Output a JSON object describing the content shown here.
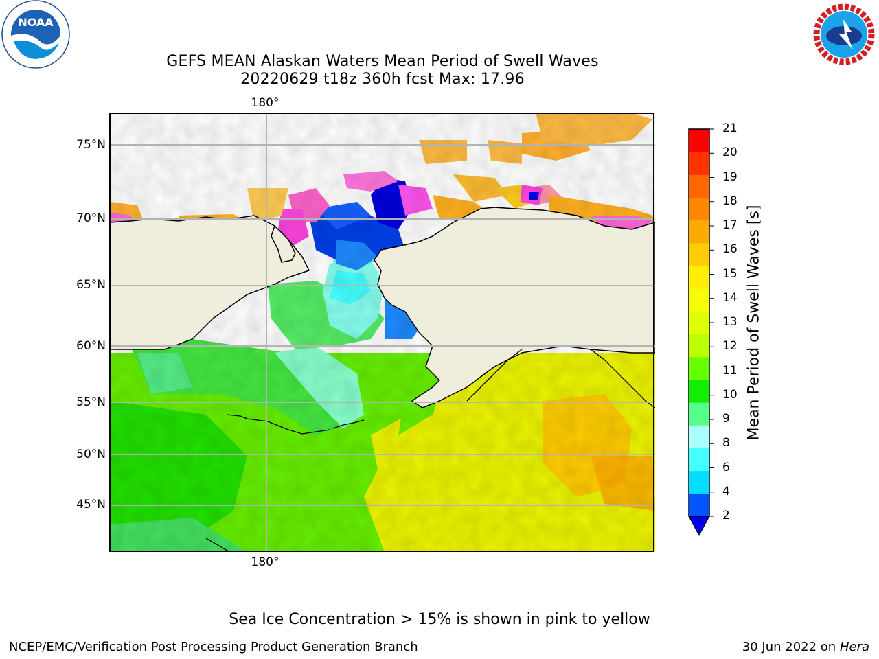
{
  "title": {
    "line1": "GEFS MEAN Alaskan Waters Mean Period of Swell Waves",
    "line2": "20220629 t18z 360h fcst   Max: 17.96"
  },
  "logos": {
    "left": {
      "icon": "noaa-logo",
      "text": "NOAA"
    },
    "right": {
      "icon": "nws-logo",
      "text": "NATIONAL WEATHER SERVICE"
    }
  },
  "map": {
    "lon_label_top": "180°",
    "lon_label_bottom": "180°",
    "lat_labels": [
      "75°N",
      "70°N",
      "65°N",
      "60°N",
      "55°N",
      "50°N",
      "45°N"
    ],
    "colors": {
      "land": "#efeddc",
      "coast": "#000000",
      "grid": "#b3b3b3"
    }
  },
  "colorbar": {
    "title": "Mean Period of Swell Waves [s]",
    "ticks": [
      "21",
      "20",
      "19",
      "18",
      "17",
      "16",
      "15",
      "14",
      "13",
      "12",
      "11",
      "10",
      "9",
      "8",
      "6",
      "4",
      "2"
    ],
    "colors_bottom_to_top": [
      "#0055ff",
      "#00ddff",
      "#44ffff",
      "#aaffff",
      "#55ff88",
      "#11ee00",
      "#66ff00",
      "#bbff00",
      "#ddff00",
      "#f5ff00",
      "#ffee00",
      "#ffcc00",
      "#ffaa00",
      "#ff8800",
      "#ff6600",
      "#ff3300",
      "#ff0000"
    ],
    "extend_color": "#0000ee"
  },
  "note": "Sea Ice Concentration > 15% is shown in pink to yellow",
  "footer": {
    "left": "NCEP/EMC/Verification Post Processing Product Generation Branch",
    "date": "30 Jun 2022 on",
    "machine": "Hera"
  }
}
